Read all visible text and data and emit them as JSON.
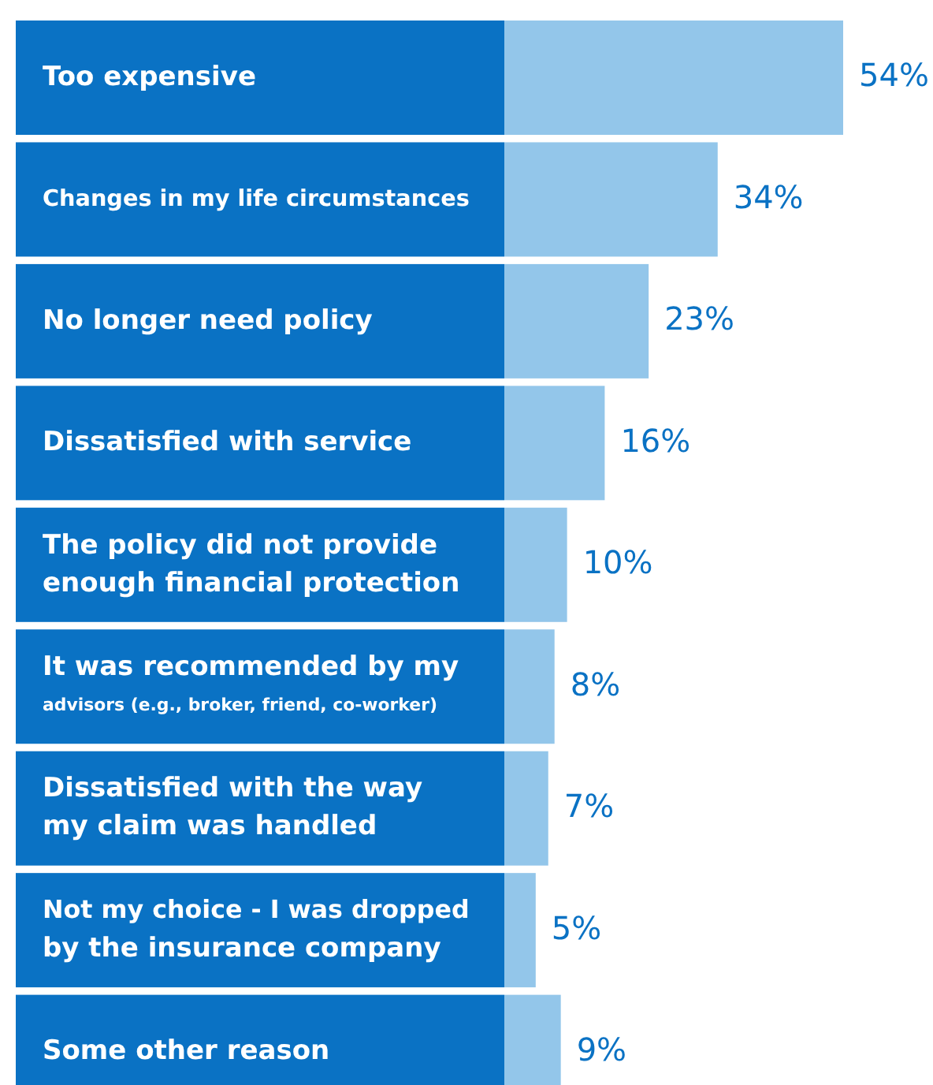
{
  "chart_data": {
    "type": "bar",
    "orientation": "horizontal",
    "categories": [
      "Too expensive",
      "Changes in my life circumstances",
      "No longer need policy",
      "Dissatisfied with service",
      "The policy did not provide\nenough financial protection",
      "It was recommended by my\nadvisors (e.g., broker, friend, co-worker)",
      "Dissatisfied with the way\nmy claim was handled",
      "Not my choice - I was dropped\nby the insurance company",
      "Some other reason"
    ],
    "values": [
      54,
      34,
      23,
      16,
      10,
      8,
      7,
      5,
      9
    ],
    "value_labels": [
      "54%",
      "34%",
      "23%",
      "16%",
      "10%",
      "8%",
      "7%",
      "5%",
      "9%"
    ],
    "color": "#93c6ea"
  }
}
